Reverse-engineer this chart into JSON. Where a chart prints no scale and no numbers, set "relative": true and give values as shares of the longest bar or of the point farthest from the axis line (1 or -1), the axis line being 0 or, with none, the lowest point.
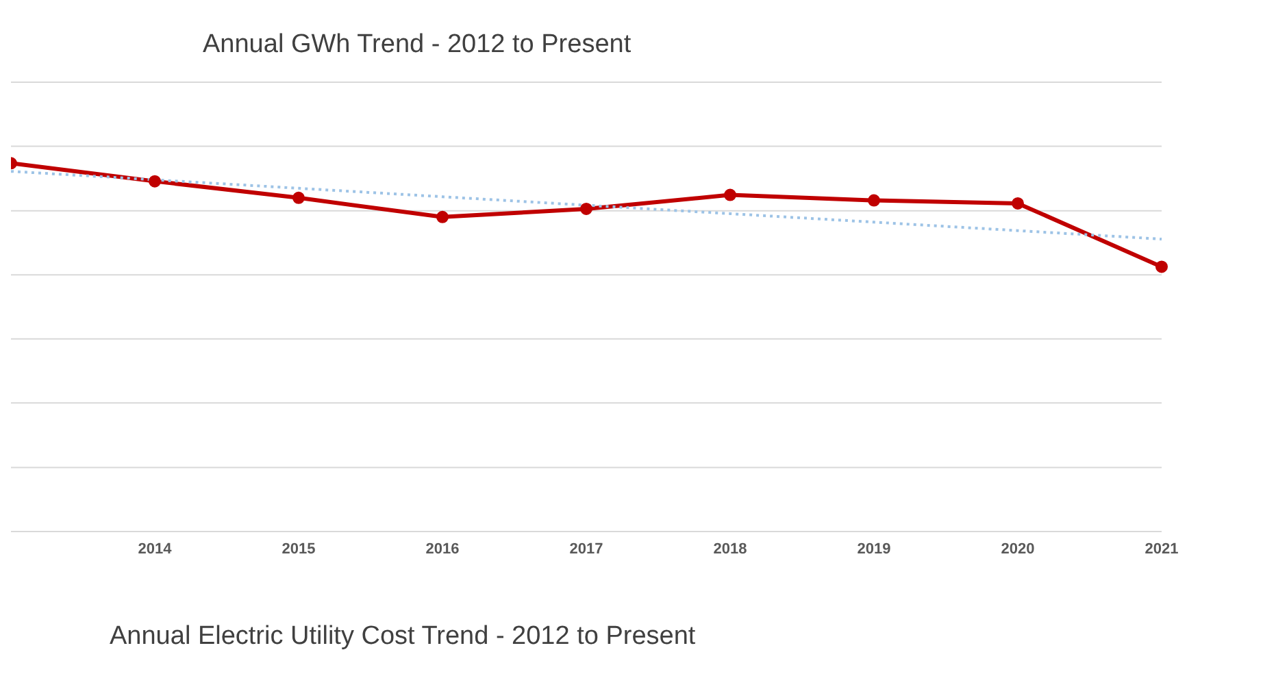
{
  "chart_data": {
    "type": "line",
    "title": "Annual GWh Trend - 2012 to Present",
    "categories": [
      null,
      "2014",
      "2015",
      "2016",
      "2017",
      "2018",
      "2019",
      "2020",
      "2021"
    ],
    "relative": true,
    "grid": "y",
    "series": [
      {
        "type": "line",
        "color": "#c00000",
        "marker": "circle",
        "line_style": "solid",
        "values": [
          1.0,
          0.951,
          0.906,
          0.854,
          0.876,
          0.914,
          0.899,
          0.891,
          0.719
        ]
      },
      {
        "type": "line",
        "color": "#9dc3e6",
        "marker": "none",
        "line_style": "dotted",
        "values": [
          0.978,
          0.955,
          0.932,
          0.909,
          0.886,
          0.863,
          0.84,
          0.817,
          0.794
        ]
      }
    ],
    "annotations": [
      "Annual Electric Utility Cost Trend - 2012 to Present"
    ]
  }
}
